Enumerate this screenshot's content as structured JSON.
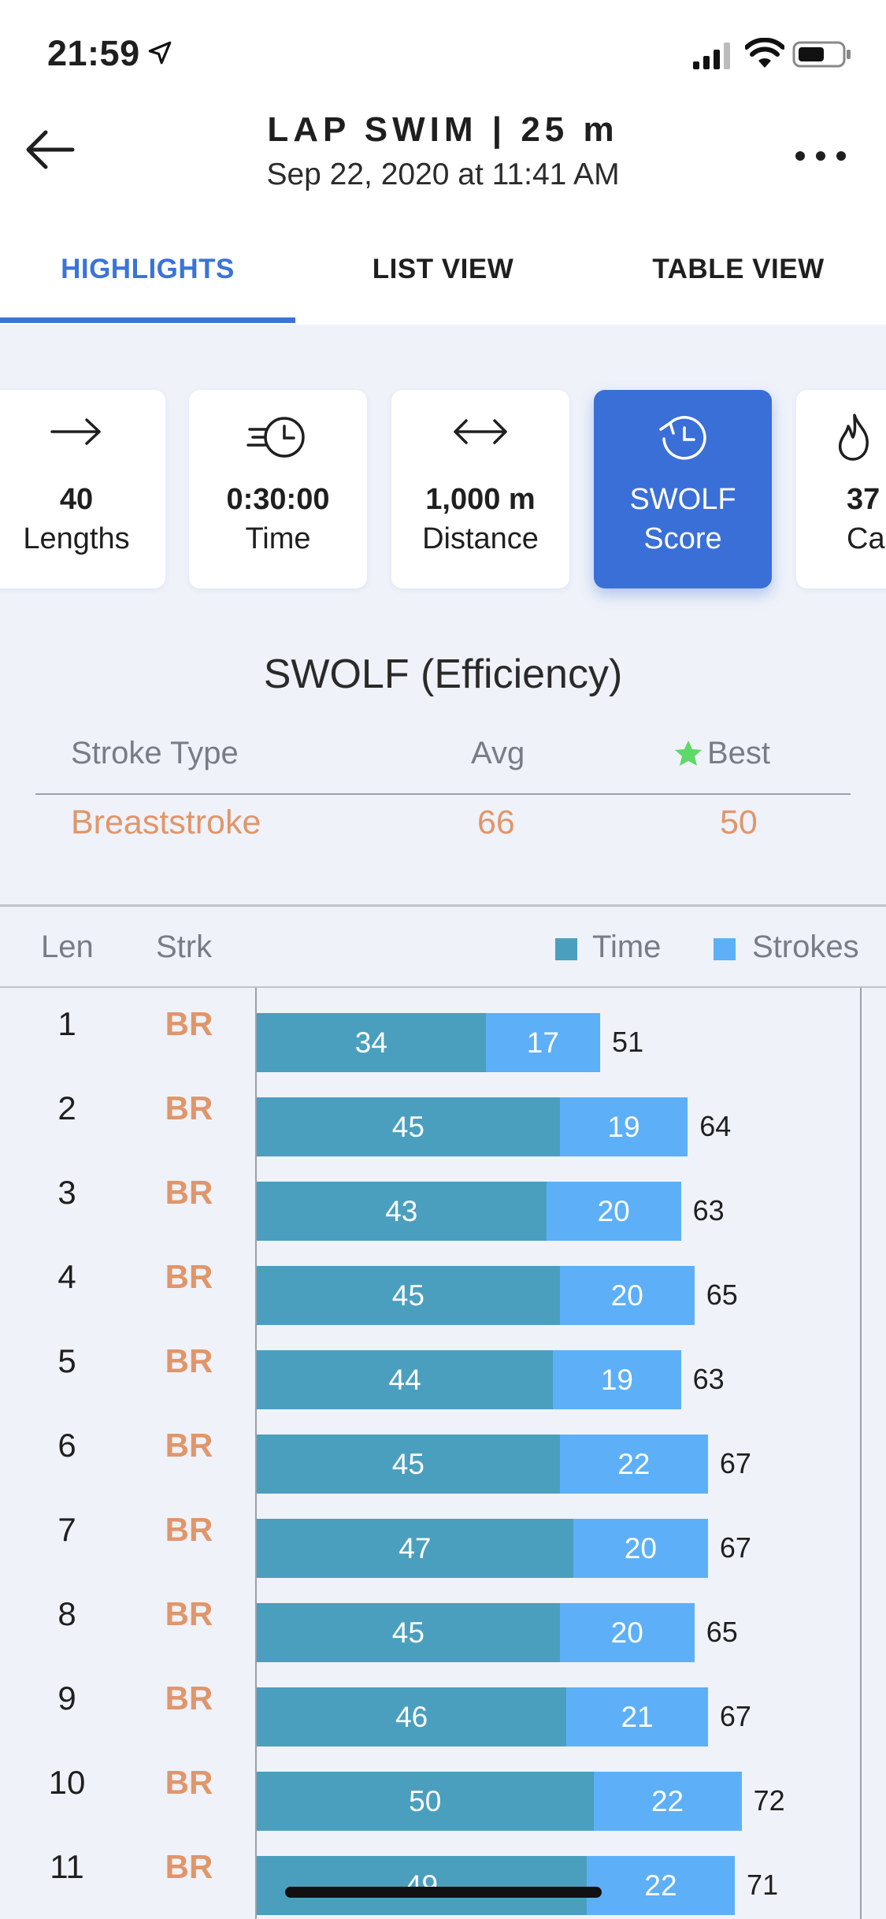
{
  "status_bar": {
    "time": "21:59"
  },
  "header": {
    "title": "LAP SWIM | 25 m",
    "subtitle": "Sep 22, 2020 at 11:41 AM"
  },
  "tabs": [
    {
      "label": "HIGHLIGHTS",
      "active": true
    },
    {
      "label": "LIST VIEW",
      "active": false
    },
    {
      "label": "TABLE VIEW",
      "active": false
    }
  ],
  "cards": [
    {
      "value": "40",
      "label": "Lengths",
      "icon": "arrow-right-icon"
    },
    {
      "value": "0:30:00",
      "label": "Time",
      "icon": "fast-clock-icon"
    },
    {
      "value": "1,000 m",
      "label": "Distance",
      "icon": "arrows-horizontal-icon"
    },
    {
      "value": "SWOLF",
      "label": "Score",
      "icon": "clock-refresh-icon",
      "active": true
    },
    {
      "value": "37",
      "label": "Calo",
      "icon": "flame-icon"
    }
  ],
  "swolf": {
    "title": "SWOLF (Efficiency)",
    "headers": {
      "stroke_type": "Stroke Type",
      "avg": "Avg",
      "best": "Best"
    },
    "row": {
      "stroke": "Breaststroke",
      "avg": "66",
      "best": "50"
    }
  },
  "chart_header": {
    "len": "Len",
    "strk": "Strk",
    "time": "Time",
    "strokes": "Strokes"
  },
  "colors": {
    "accent": "#3a74d6",
    "time_bar": "#4b9fbe",
    "strokes_bar": "#5db0f7",
    "stroke_text": "#e0966a",
    "best_star": "#5fd86a"
  },
  "chart_data": {
    "type": "bar",
    "stacked": true,
    "orientation": "horizontal",
    "categories": [
      "1",
      "2",
      "3",
      "4",
      "5",
      "6",
      "7",
      "8",
      "9",
      "10",
      "11"
    ],
    "stroke_labels": [
      "BR",
      "BR",
      "BR",
      "BR",
      "BR",
      "BR",
      "BR",
      "BR",
      "BR",
      "BR",
      "BR"
    ],
    "series": [
      {
        "name": "Time",
        "values": [
          34,
          45,
          43,
          45,
          44,
          45,
          47,
          45,
          46,
          50,
          49
        ]
      },
      {
        "name": "Strokes",
        "values": [
          17,
          19,
          20,
          20,
          19,
          22,
          20,
          20,
          21,
          22,
          22
        ]
      }
    ],
    "totals": [
      51,
      64,
      63,
      65,
      63,
      67,
      67,
      65,
      67,
      72,
      71
    ]
  }
}
